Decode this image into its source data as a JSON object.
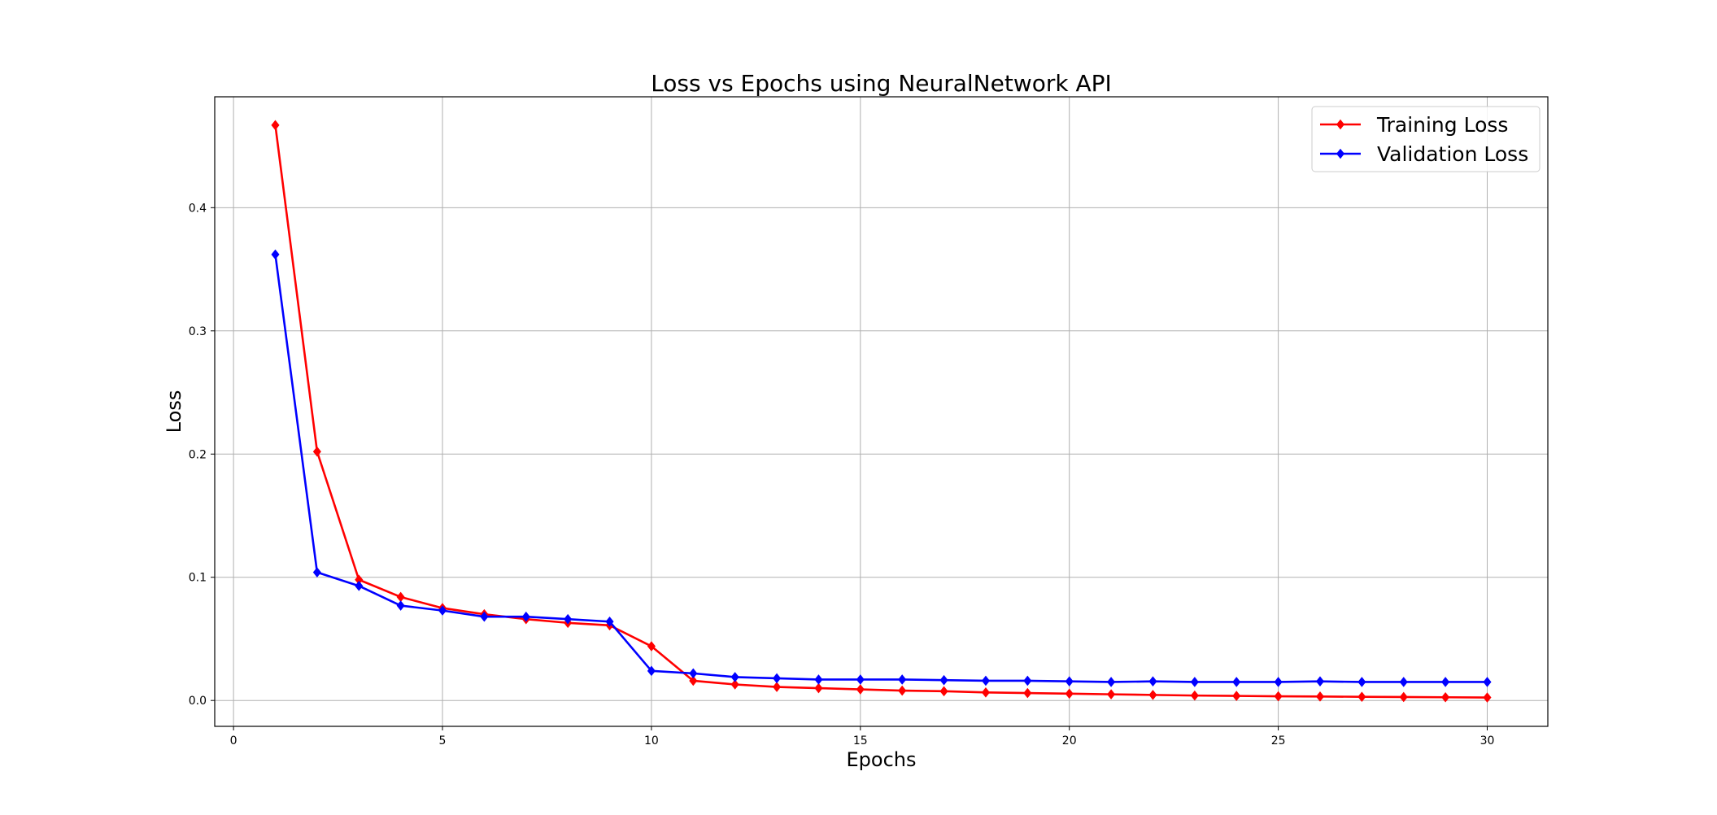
{
  "chart_data": {
    "type": "line",
    "title": "Loss vs Epochs using NeuralNetwork API",
    "xlabel": "Epochs",
    "ylabel": "Loss",
    "xlim": [
      -0.45,
      31.45
    ],
    "ylim": [
      -0.021,
      0.49
    ],
    "xticks": [
      0,
      5,
      10,
      15,
      20,
      25,
      30
    ],
    "yticks": [
      0.0,
      0.1,
      0.2,
      0.3,
      0.4
    ],
    "xtick_labels": [
      "0",
      "5",
      "10",
      "15",
      "20",
      "25",
      "30"
    ],
    "ytick_labels": [
      "0.0",
      "0.1",
      "0.2",
      "0.3",
      "0.4"
    ],
    "grid": true,
    "legend_position": "top-right",
    "x": [
      1,
      2,
      3,
      4,
      5,
      6,
      7,
      8,
      9,
      10,
      11,
      12,
      13,
      14,
      15,
      16,
      17,
      18,
      19,
      20,
      21,
      22,
      23,
      24,
      25,
      26,
      27,
      28,
      29,
      30
    ],
    "series": [
      {
        "name": "Training Loss",
        "color": "#ff0000",
        "marker": "diamond",
        "values": [
          0.467,
          0.202,
          0.098,
          0.084,
          0.075,
          0.07,
          0.066,
          0.063,
          0.061,
          0.044,
          0.016,
          0.013,
          0.011,
          0.01,
          0.009,
          0.008,
          0.0075,
          0.0065,
          0.006,
          0.0055,
          0.005,
          0.0045,
          0.004,
          0.0037,
          0.0034,
          0.0032,
          0.003,
          0.0028,
          0.0026,
          0.0024
        ]
      },
      {
        "name": "Validation Loss",
        "color": "#0000ff",
        "marker": "diamond",
        "values": [
          0.362,
          0.104,
          0.093,
          0.077,
          0.073,
          0.068,
          0.068,
          0.066,
          0.064,
          0.024,
          0.022,
          0.019,
          0.018,
          0.017,
          0.017,
          0.017,
          0.0165,
          0.016,
          0.016,
          0.0155,
          0.015,
          0.0155,
          0.015,
          0.015,
          0.015,
          0.0155,
          0.015,
          0.015,
          0.015,
          0.015
        ]
      }
    ]
  }
}
